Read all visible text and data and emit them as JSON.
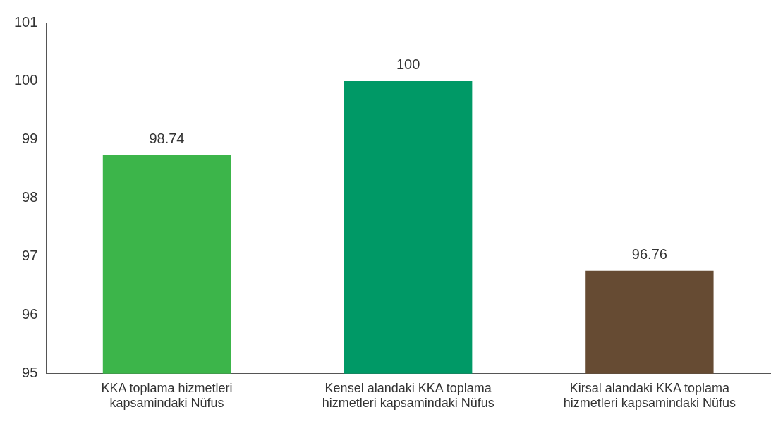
{
  "chart_data": {
    "type": "bar",
    "categories": [
      "KKA toplama hizmetleri kapsamindaki Nüfus",
      "Kensel alandaki KKA toplama hizmetleri kapsamindaki Nüfus",
      "Kirsal alandaki KKA toplama hizmetleri kapsamindaki Nüfus"
    ],
    "values": [
      98.74,
      100,
      96.76
    ],
    "colors": [
      "#3cb54a",
      "#009966",
      "#664b33"
    ],
    "ylim": [
      95,
      101
    ],
    "yticks": [
      95,
      96,
      97,
      98,
      99,
      100,
      101
    ],
    "grid": false,
    "legend": false,
    "data_labels": true
  }
}
